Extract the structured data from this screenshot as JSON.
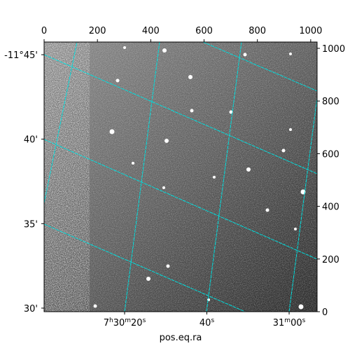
{
  "chart_data": {
    "type": "image",
    "xlabel": "pos.eq.ra",
    "xlim": [
      0,
      1024
    ],
    "xticks": [
      0,
      200,
      400,
      600,
      800,
      1000
    ],
    "ylim": [
      0,
      1024
    ],
    "yticks": [
      0,
      200,
      400,
      600,
      800,
      1000
    ],
    "ra_lim": [
      27000.43,
      27066.8
    ],
    "ra_ticks": [
      {
        "value": 27020,
        "label": "7h30m20s"
      },
      {
        "value": 27040,
        "label": "40s"
      },
      {
        "value": 27060,
        "label": "31m00s"
      }
    ],
    "dec_lim": [
      -689.79,
      -705.75
    ],
    "dec_ticks": [
      {
        "value": -705,
        "label": "-11°45'"
      },
      {
        "value": -700,
        "label": "40'"
      },
      {
        "value": -695,
        "label": "35'"
      },
      {
        "value": -690,
        "label": "30'"
      }
    ],
    "grid_color": "#00dede"
  }
}
